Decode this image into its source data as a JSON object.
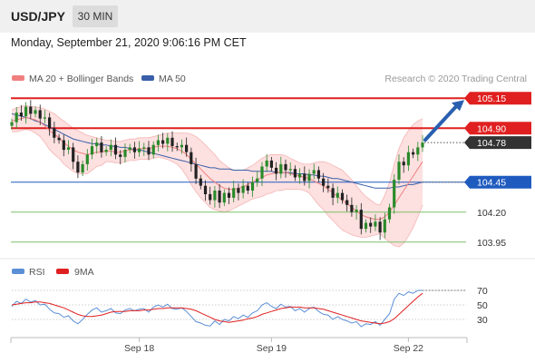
{
  "header": {
    "symbol": "USD/JPY",
    "timeframe": "30 MIN",
    "timestamp": "Monday, September 21, 2020 9:06:16 PM CET"
  },
  "legend": {
    "ma20": "MA 20 + Bollinger Bands",
    "ma50": "MA 50",
    "copyright": "Research © 2020 Trading Central",
    "rsi": "RSI",
    "ma9": "9MA"
  },
  "colors": {
    "candle_up": "#2a8a2a",
    "candle_down": "#222222",
    "ma20": "#f08080",
    "bollinger_fill": "#fcd6d6",
    "ma50": "#3a5fa8",
    "resistance": "#e02020",
    "support_blue": "#1f5bbf",
    "support_green": "#7fbf6a",
    "current_price": "#333333",
    "rsi": "#5b8fd6",
    "rsi_ma": "#e02020",
    "arrow": "#2a5fb0"
  },
  "chart_data": [
    {
      "type": "candlestick",
      "x_ticks": [
        "Sep 18",
        "Sep 19",
        "Sep 22"
      ],
      "x_tick_index": [
        27,
        55,
        84
      ],
      "ylim": [
        103.85,
        105.25
      ],
      "levels": [
        {
          "value": 105.15,
          "label": "105.15",
          "kind": "resistance"
        },
        {
          "value": 104.9,
          "label": "104.90",
          "kind": "resistance"
        },
        {
          "value": 104.78,
          "label": "104.78",
          "kind": "current"
        },
        {
          "value": 104.45,
          "label": "104.45",
          "kind": "pivot"
        },
        {
          "value": 104.2,
          "label": "104.20",
          "kind": "support"
        },
        {
          "value": 103.95,
          "label": "103.95",
          "kind": "support"
        }
      ],
      "close": [
        104.95,
        105.03,
        105.0,
        105.08,
        105.02,
        105.05,
        104.98,
        104.99,
        104.9,
        104.82,
        104.8,
        104.72,
        104.74,
        104.62,
        104.53,
        104.6,
        104.68,
        104.75,
        104.78,
        104.7,
        104.72,
        104.76,
        104.68,
        104.66,
        104.72,
        104.74,
        104.7,
        104.73,
        104.74,
        104.68,
        104.76,
        104.8,
        104.77,
        104.82,
        104.75,
        104.74,
        104.76,
        104.7,
        104.6,
        104.48,
        104.42,
        104.35,
        104.3,
        104.38,
        104.28,
        104.36,
        104.32,
        104.4,
        104.36,
        104.42,
        104.38,
        104.45,
        104.48,
        104.58,
        104.63,
        104.57,
        104.52,
        104.6,
        104.55,
        104.56,
        104.49,
        104.52,
        104.46,
        104.52,
        104.55,
        104.48,
        104.42,
        104.4,
        104.32,
        104.36,
        104.3,
        104.26,
        104.2,
        104.22,
        104.06,
        104.11,
        104.08,
        104.12,
        104.03,
        104.14,
        104.24,
        104.47,
        104.62,
        104.59,
        104.7,
        104.68,
        104.74,
        104.78
      ],
      "ma20": [
        104.96,
        104.97,
        104.98,
        104.99,
        104.98,
        104.97,
        104.95,
        104.92,
        104.88,
        104.85,
        104.82,
        104.78,
        104.75,
        104.72,
        104.7,
        104.69,
        104.68,
        104.69,
        104.7,
        104.7,
        104.71,
        104.71,
        104.7,
        104.7,
        104.71,
        104.72,
        104.72,
        104.73,
        104.73,
        104.73,
        104.74,
        104.75,
        104.75,
        104.75,
        104.74,
        104.73,
        104.71,
        104.68,
        104.64,
        104.6,
        104.56,
        104.52,
        104.48,
        104.45,
        104.42,
        104.4,
        104.39,
        104.39,
        104.4,
        104.41,
        104.43,
        104.45,
        104.47,
        104.49,
        104.51,
        104.52,
        104.53,
        104.53,
        104.53,
        104.52,
        104.51,
        104.5,
        104.49,
        104.48,
        104.46,
        104.44,
        104.42,
        104.39,
        104.36,
        104.33,
        104.3,
        104.27,
        104.24,
        104.21,
        104.18,
        104.16,
        104.15,
        104.14,
        104.14,
        104.16,
        104.2,
        104.26,
        104.32,
        104.38,
        104.44,
        104.5,
        104.56,
        104.62
      ],
      "bb_upper": [
        105.05,
        105.07,
        105.08,
        105.09,
        105.08,
        105.08,
        105.07,
        105.06,
        105.04,
        105.02,
        104.99,
        104.96,
        104.93,
        104.9,
        104.88,
        104.86,
        104.84,
        104.83,
        104.82,
        104.81,
        104.8,
        104.8,
        104.79,
        104.79,
        104.8,
        104.81,
        104.81,
        104.82,
        104.82,
        104.82,
        104.83,
        104.84,
        104.85,
        104.86,
        104.86,
        104.86,
        104.86,
        104.86,
        104.85,
        104.83,
        104.8,
        104.76,
        104.72,
        104.68,
        104.63,
        104.6,
        104.57,
        104.55,
        104.55,
        104.55,
        104.57,
        104.59,
        104.62,
        104.65,
        104.67,
        104.68,
        104.68,
        104.68,
        104.67,
        104.65,
        104.63,
        104.61,
        104.6,
        104.6,
        104.61,
        104.62,
        104.62,
        104.61,
        104.59,
        104.57,
        104.55,
        104.51,
        104.47,
        104.42,
        104.37,
        104.33,
        104.3,
        104.27,
        104.26,
        104.34,
        104.45,
        104.6,
        104.73,
        104.82,
        104.88,
        104.93,
        104.96,
        104.98
      ],
      "bb_lower": [
        104.87,
        104.87,
        104.88,
        104.89,
        104.88,
        104.86,
        104.83,
        104.78,
        104.72,
        104.68,
        104.65,
        104.6,
        104.57,
        104.54,
        104.52,
        104.52,
        104.52,
        104.55,
        104.58,
        104.59,
        104.62,
        104.62,
        104.61,
        104.61,
        104.62,
        104.63,
        104.63,
        104.64,
        104.64,
        104.64,
        104.65,
        104.66,
        104.65,
        104.64,
        104.62,
        104.6,
        104.56,
        104.5,
        104.43,
        104.37,
        104.32,
        104.28,
        104.24,
        104.22,
        104.21,
        104.2,
        104.21,
        104.23,
        104.25,
        104.27,
        104.29,
        104.31,
        104.32,
        104.33,
        104.35,
        104.36,
        104.38,
        104.38,
        104.39,
        104.39,
        104.39,
        104.39,
        104.38,
        104.36,
        104.31,
        104.26,
        104.22,
        104.17,
        104.13,
        104.09,
        104.05,
        104.03,
        104.01,
        104.0,
        103.99,
        103.99,
        104.0,
        104.01,
        104.02,
        103.98,
        103.95,
        103.92,
        103.91,
        103.94,
        104.0,
        104.07,
        104.16,
        104.26
      ],
      "ma50": [
        105.02,
        105.01,
        105.0,
        104.99,
        104.98,
        104.96,
        104.95,
        104.93,
        104.91,
        104.89,
        104.87,
        104.85,
        104.83,
        104.81,
        104.8,
        104.79,
        104.78,
        104.77,
        104.77,
        104.76,
        104.76,
        104.75,
        104.75,
        104.74,
        104.74,
        104.73,
        104.72,
        104.72,
        104.71,
        104.7,
        104.69,
        104.68,
        104.67,
        104.66,
        104.65,
        104.64,
        104.63,
        104.62,
        104.61,
        104.6,
        104.59,
        104.58,
        104.57,
        104.57,
        104.56,
        104.56,
        104.56,
        104.55,
        104.55,
        104.55,
        104.55,
        104.54,
        104.54,
        104.54,
        104.54,
        104.54,
        104.53,
        104.53,
        104.53,
        104.53,
        104.52,
        104.52,
        104.52,
        104.51,
        104.51,
        104.5,
        104.5,
        104.49,
        104.48,
        104.48,
        104.47,
        104.46,
        104.45,
        104.44,
        104.43,
        104.42,
        104.41,
        104.4,
        104.4,
        104.4,
        104.4,
        104.41,
        104.41,
        104.42,
        104.43,
        104.43,
        104.44,
        104.45
      ]
    },
    {
      "type": "line",
      "title": "RSI",
      "y_ticks": [
        70,
        50,
        30
      ],
      "ylim": [
        10,
        85
      ],
      "series": [
        {
          "name": "RSI",
          "values": [
            48,
            55,
            52,
            58,
            54,
            56,
            50,
            51,
            44,
            39,
            38,
            33,
            35,
            28,
            24,
            30,
            37,
            43,
            46,
            40,
            42,
            45,
            39,
            38,
            43,
            45,
            42,
            44,
            45,
            40,
            47,
            50,
            47,
            51,
            45,
            44,
            46,
            41,
            34,
            27,
            25,
            22,
            21,
            28,
            23,
            30,
            28,
            34,
            31,
            36,
            33,
            39,
            42,
            50,
            53,
            48,
            45,
            51,
            47,
            48,
            42,
            45,
            40,
            45,
            47,
            41,
            37,
            36,
            30,
            34,
            30,
            28,
            25,
            27,
            20,
            24,
            23,
            27,
            22,
            30,
            38,
            58,
            66,
            63,
            68,
            66,
            70,
            70
          ]
        },
        {
          "name": "9MA",
          "values": [
            50,
            51,
            52,
            53,
            53,
            54,
            54,
            53,
            52,
            50,
            48,
            46,
            43,
            40,
            37,
            35,
            34,
            34,
            35,
            36,
            38,
            40,
            41,
            41,
            41,
            42,
            42,
            42,
            43,
            43,
            44,
            45,
            45,
            46,
            46,
            46,
            46,
            45,
            44,
            42,
            39,
            36,
            33,
            30,
            28,
            27,
            26,
            27,
            28,
            29,
            31,
            32,
            34,
            37,
            39,
            41,
            43,
            45,
            46,
            47,
            47,
            47,
            46,
            46,
            46,
            45,
            44,
            42,
            40,
            38,
            36,
            34,
            32,
            30,
            28,
            27,
            26,
            25,
            24,
            25,
            27,
            31,
            37,
            43,
            49,
            55,
            61,
            66
          ]
        }
      ]
    }
  ]
}
